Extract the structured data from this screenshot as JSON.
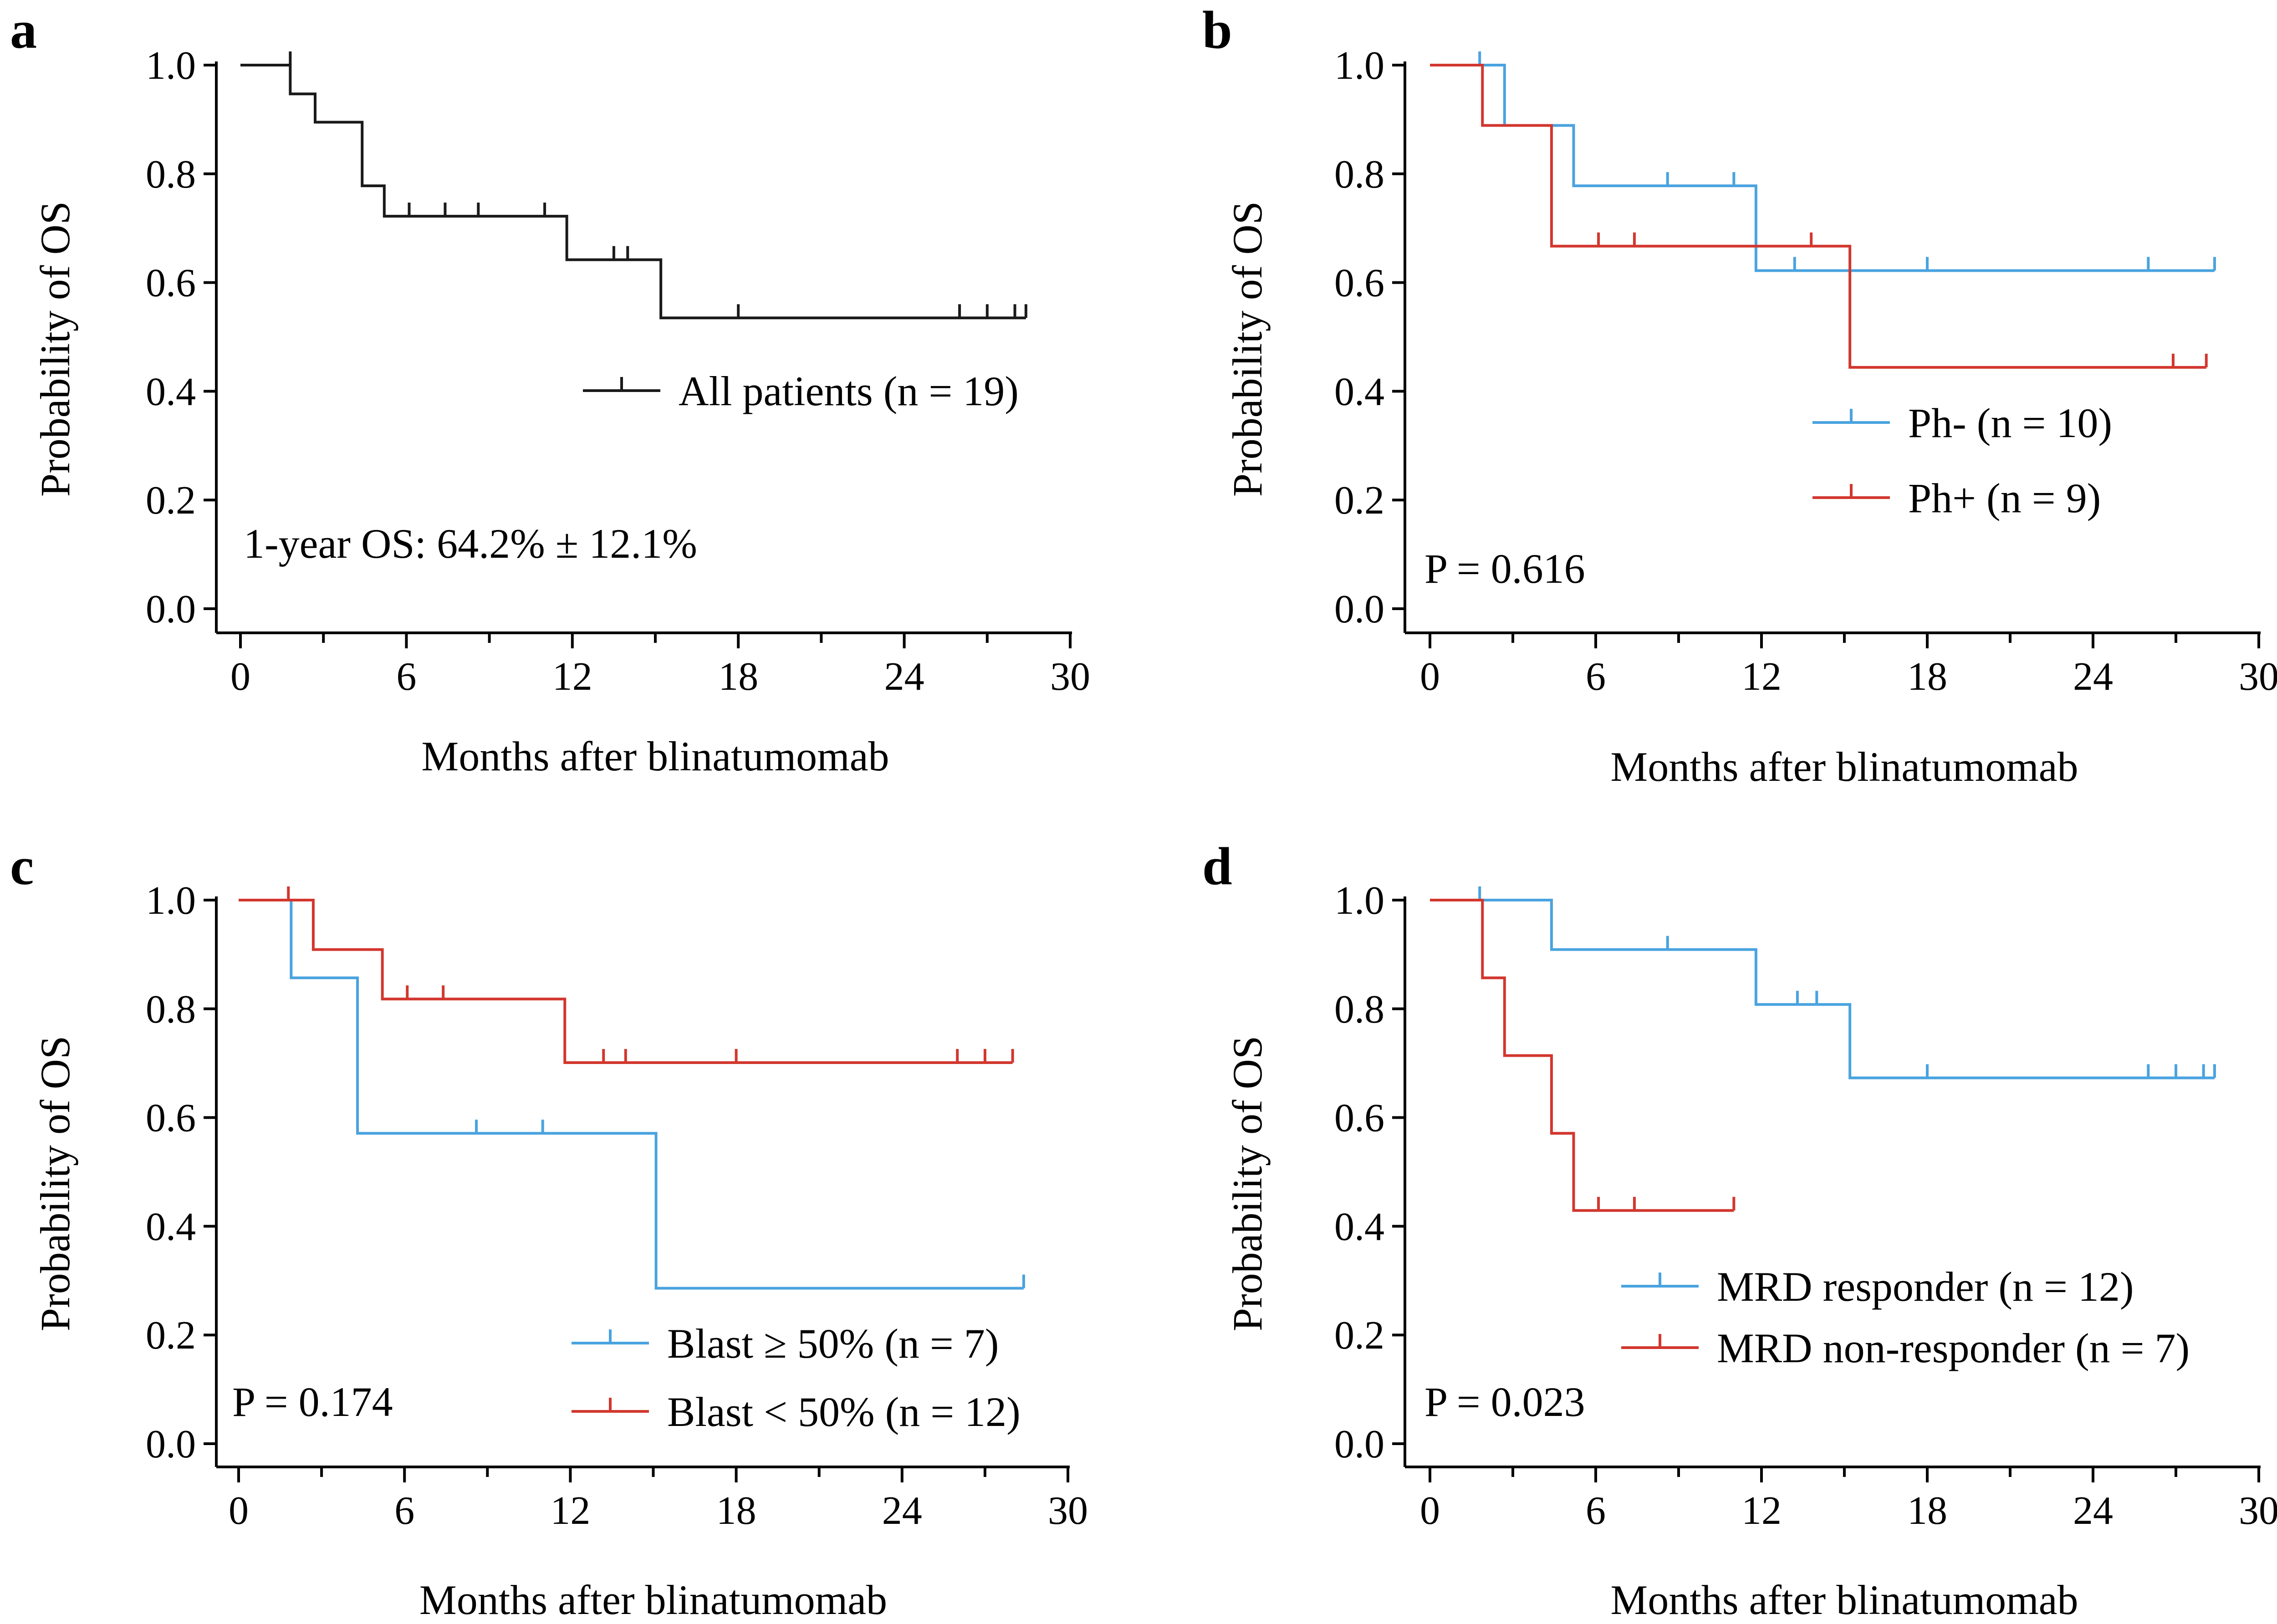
{
  "colors": {
    "black": "#1a1a1a",
    "blue": "#4aa3df",
    "red": "#d2372e"
  },
  "chart_data": [
    {
      "panel": "a",
      "type": "line",
      "subtype": "kaplan-meier",
      "xlabel": "Months after blinatumomab",
      "ylabel": "Probability of OS",
      "xlim": [
        0,
        30
      ],
      "ylim": [
        0,
        1
      ],
      "xticks": [
        "0",
        "6",
        "12",
        "18",
        "24",
        "30"
      ],
      "yticks": [
        "0.0",
        "0.2",
        "0.4",
        "0.6",
        "0.8",
        "1.0"
      ],
      "note": "1-year OS: 64.2% ± 12.1%",
      "legend_position": "middle-right",
      "series": [
        {
          "name": "All patients (n = 19)",
          "color": "black",
          "steps": [
            [
              0,
              1.0
            ],
            [
              1.8,
              0.947
            ],
            [
              2.7,
              0.895
            ],
            [
              4.4,
              0.778
            ],
            [
              5.2,
              0.722
            ],
            [
              11.8,
              0.642
            ],
            [
              15.2,
              0.535
            ],
            [
              28.4,
              0.535
            ]
          ],
          "censors": [
            [
              1.8,
              1.0
            ],
            [
              6.1,
              0.722
            ],
            [
              7.4,
              0.722
            ],
            [
              8.6,
              0.722
            ],
            [
              11.0,
              0.722
            ],
            [
              13.5,
              0.642
            ],
            [
              14.0,
              0.642
            ],
            [
              18.0,
              0.535
            ],
            [
              26.0,
              0.535
            ],
            [
              27.0,
              0.535
            ],
            [
              28.0,
              0.535
            ],
            [
              28.4,
              0.535
            ]
          ]
        }
      ]
    },
    {
      "panel": "b",
      "type": "line",
      "subtype": "kaplan-meier",
      "xlabel": "Months after blinatumomab",
      "ylabel": "Probability of OS",
      "xlim": [
        0,
        30
      ],
      "ylim": [
        0,
        1
      ],
      "xticks": [
        "0",
        "6",
        "12",
        "18",
        "24",
        "30"
      ],
      "yticks": [
        "0.0",
        "0.2",
        "0.4",
        "0.6",
        "0.8",
        "1.0"
      ],
      "note": "P = 0.616",
      "legend_position": "middle-right",
      "series": [
        {
          "name": "Ph- (n = 10)",
          "color": "blue",
          "steps": [
            [
              0,
              1.0
            ],
            [
              2.7,
              0.889
            ],
            [
              5.2,
              0.778
            ],
            [
              11.8,
              0.622
            ],
            [
              28.4,
              0.622
            ]
          ],
          "censors": [
            [
              1.8,
              1.0
            ],
            [
              8.6,
              0.778
            ],
            [
              11.0,
              0.778
            ],
            [
              13.2,
              0.622
            ],
            [
              18.0,
              0.622
            ],
            [
              26.0,
              0.622
            ],
            [
              28.4,
              0.622
            ]
          ]
        },
        {
          "name": "Ph+ (n = 9)",
          "color": "red",
          "steps": [
            [
              0,
              1.0
            ],
            [
              1.9,
              0.889
            ],
            [
              4.4,
              0.667
            ],
            [
              15.2,
              0.444
            ],
            [
              28.1,
              0.444
            ]
          ],
          "censors": [
            [
              6.1,
              0.667
            ],
            [
              7.4,
              0.667
            ],
            [
              13.8,
              0.667
            ],
            [
              26.9,
              0.444
            ],
            [
              28.1,
              0.444
            ]
          ]
        }
      ]
    },
    {
      "panel": "c",
      "type": "line",
      "subtype": "kaplan-meier",
      "xlabel": "Months after blinatumomab",
      "ylabel": "Probability of OS",
      "xlim": [
        0,
        30
      ],
      "ylim": [
        0,
        1
      ],
      "xticks": [
        "0",
        "6",
        "12",
        "18",
        "24",
        "30"
      ],
      "yticks": [
        "0.0",
        "0.2",
        "0.4",
        "0.6",
        "0.8",
        "1.0"
      ],
      "note": "P = 0.174",
      "legend_position": "bottom-right",
      "series": [
        {
          "name": "Blast ≥ 50% (n = 7)",
          "color": "blue",
          "steps": [
            [
              0,
              1.0
            ],
            [
              1.9,
              0.857
            ],
            [
              4.3,
              0.571
            ],
            [
              15.1,
              0.286
            ],
            [
              28.4,
              0.286
            ]
          ],
          "censors": [
            [
              8.6,
              0.571
            ],
            [
              11.0,
              0.571
            ],
            [
              28.4,
              0.286
            ]
          ]
        },
        {
          "name": "Blast < 50% (n = 12)",
          "color": "red",
          "steps": [
            [
              0,
              1.0
            ],
            [
              2.7,
              0.909
            ],
            [
              5.2,
              0.818
            ],
            [
              11.8,
              0.701
            ],
            [
              28.0,
              0.701
            ]
          ],
          "censors": [
            [
              1.8,
              1.0
            ],
            [
              6.1,
              0.818
            ],
            [
              7.4,
              0.818
            ],
            [
              13.2,
              0.701
            ],
            [
              14.0,
              0.701
            ],
            [
              18.0,
              0.701
            ],
            [
              26.0,
              0.701
            ],
            [
              27.0,
              0.701
            ],
            [
              28.0,
              0.701
            ]
          ]
        }
      ]
    },
    {
      "panel": "d",
      "type": "line",
      "subtype": "kaplan-meier",
      "xlabel": "Months after blinatumomab",
      "ylabel": "Probability of OS",
      "xlim": [
        0,
        30
      ],
      "ylim": [
        0,
        1
      ],
      "xticks": [
        "0",
        "6",
        "12",
        "18",
        "24",
        "30"
      ],
      "yticks": [
        "0.0",
        "0.2",
        "0.4",
        "0.6",
        "0.8",
        "1.0"
      ],
      "note": "P = 0.023",
      "legend_position": "bottom-right",
      "series": [
        {
          "name": "MRD responder (n = 12)",
          "color": "blue",
          "steps": [
            [
              0,
              1.0
            ],
            [
              4.4,
              0.909
            ],
            [
              11.8,
              0.808
            ],
            [
              15.2,
              0.673
            ],
            [
              28.4,
              0.673
            ]
          ],
          "censors": [
            [
              1.8,
              1.0
            ],
            [
              8.6,
              0.909
            ],
            [
              13.3,
              0.808
            ],
            [
              14.0,
              0.808
            ],
            [
              18.0,
              0.673
            ],
            [
              26.0,
              0.673
            ],
            [
              27.0,
              0.673
            ],
            [
              28.0,
              0.673
            ],
            [
              28.4,
              0.673
            ]
          ]
        },
        {
          "name": "MRD non-responder (n = 7)",
          "color": "red",
          "steps": [
            [
              0,
              1.0
            ],
            [
              1.9,
              0.857
            ],
            [
              2.7,
              0.714
            ],
            [
              4.4,
              0.571
            ],
            [
              5.2,
              0.429
            ],
            [
              11.0,
              0.429
            ]
          ],
          "censors": [
            [
              6.1,
              0.429
            ],
            [
              7.4,
              0.429
            ],
            [
              11.0,
              0.429
            ]
          ]
        }
      ]
    }
  ]
}
